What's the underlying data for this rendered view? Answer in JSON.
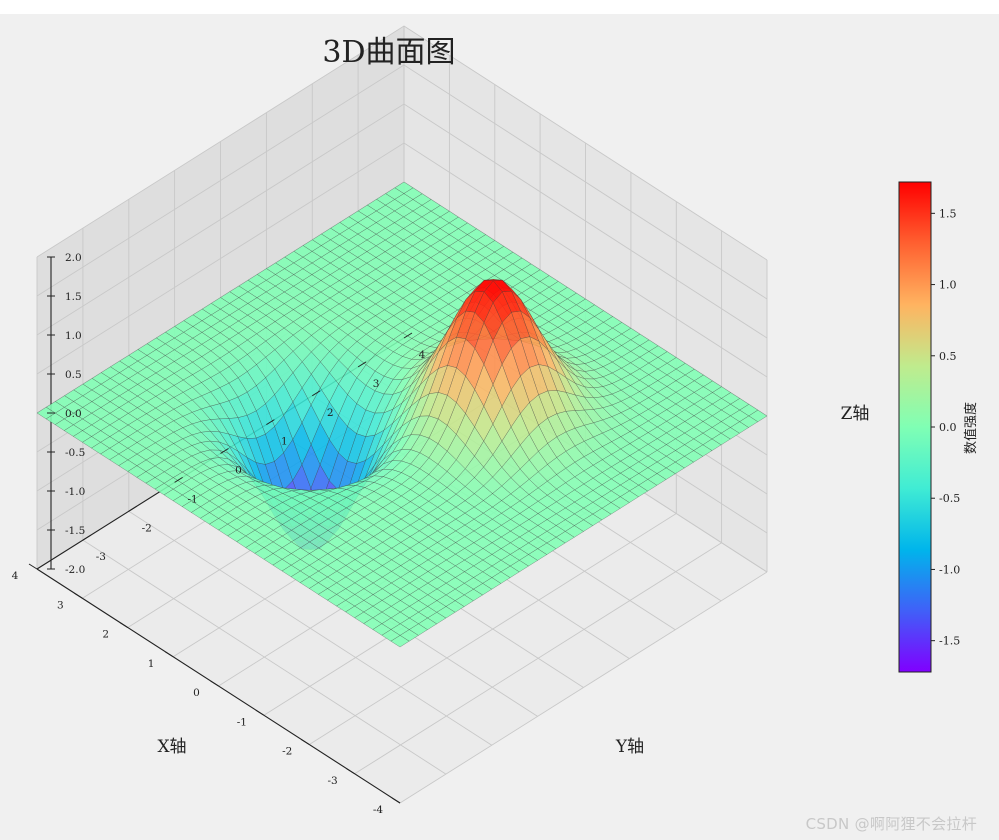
{
  "chart_data": {
    "type": "surface3d",
    "title": "3D曲面图",
    "xlabel": "X轴",
    "ylabel": "Y轴",
    "zlabel": "Z轴",
    "xlim": [
      -4,
      4
    ],
    "ylim": [
      -3,
      4
    ],
    "zlim": [
      -2,
      2
    ],
    "x_ticks": [
      -4,
      -3,
      -2,
      -1,
      0,
      1,
      2,
      3,
      4
    ],
    "y_ticks": [
      -3,
      -2,
      -1,
      0,
      1,
      2,
      3,
      4
    ],
    "z_ticks": [
      "-2.0",
      "-1.5",
      "-1.0",
      "-0.5",
      "0.0",
      "0.5",
      "1.0",
      "1.5",
      "2.0"
    ],
    "surface": {
      "description": "Sum of two Gaussians over a 40x40 grid",
      "peak": {
        "x": -1,
        "y": 1,
        "z": 1.72
      },
      "trough": {
        "x": 1,
        "y": -1,
        "z": -1.72
      },
      "grid_points": 40,
      "colormap": "rainbow"
    },
    "colorbar": {
      "label": "数值强度",
      "range": [
        -1.72,
        1.72
      ],
      "ticks": [
        "-1.5",
        "-1.0",
        "-0.5",
        "0.0",
        "0.5",
        "1.0",
        "1.5"
      ],
      "colors": [
        "#8000ff",
        "#4060f8",
        "#00b5eb",
        "#40ecd4",
        "#80ffb4",
        "#c0eb8d",
        "#ffb360",
        "#ff6030",
        "#ff0000"
      ]
    },
    "grid": true
  },
  "watermark": "CSDN @啊阿狸不会拉杆"
}
